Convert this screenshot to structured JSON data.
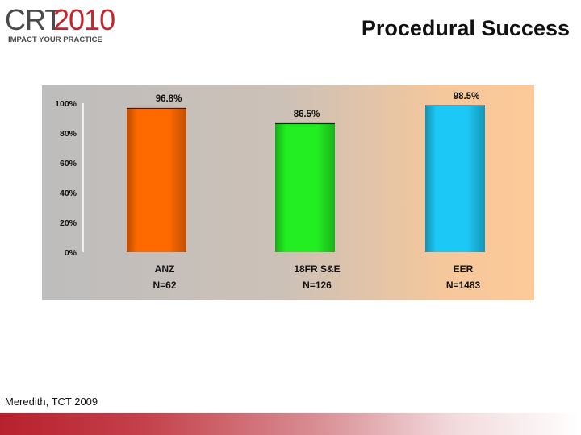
{
  "logo": {
    "crt": "CRT",
    "year": "2010",
    "tagline": "IMPACT YOUR PRACTICE"
  },
  "slide_title": "Procedural Success",
  "citation": "Meredith, TCT 2009",
  "colors": {
    "accent": "#c0272d",
    "bar_anz": "#ff6a00",
    "bar_18fr": "#22ee22",
    "bar_eer": "#1cc8f5"
  },
  "chart_data": {
    "type": "bar",
    "y_ticks": [
      "100%",
      "80%",
      "60%",
      "40%",
      "20%",
      "0%"
    ],
    "ylim": [
      0,
      100
    ],
    "bars": [
      {
        "name": "ANZ",
        "n_label": "N=62",
        "value": 96.8,
        "value_label": "96.8%",
        "color": "#ff6a00"
      },
      {
        "name": "18FR S&E",
        "n_label": "N=126",
        "value": 86.5,
        "value_label": "86.5%",
        "color": "#22ee22"
      },
      {
        "name": "EER",
        "n_label": "N=1483",
        "value": 98.5,
        "value_label": "98.5%",
        "color": "#1cc8f5"
      }
    ]
  }
}
